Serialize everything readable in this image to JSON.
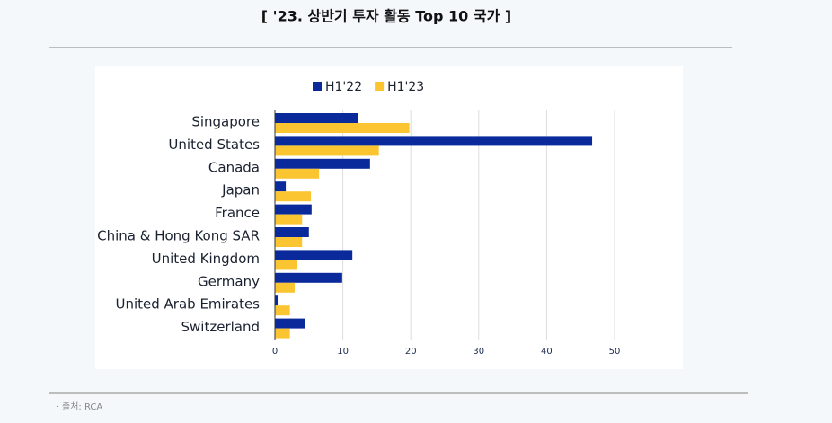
{
  "chart_data": {
    "type": "bar",
    "orientation": "horizontal",
    "title": "[ '23. 상반기 투자 활동 Top 10 국가 ]",
    "categories": [
      "Singapore",
      "United States",
      "Canada",
      "Japan",
      "France",
      "China & Hong Kong SAR",
      "United Kingdom",
      "Germany",
      "United Arab Emirates",
      "Switzerland"
    ],
    "series": [
      {
        "name": "H1'22",
        "color": "#0a2a9c",
        "values": [
          12.2,
          46.7,
          14.0,
          1.6,
          5.4,
          5.0,
          11.4,
          9.9,
          0.4,
          4.4
        ]
      },
      {
        "name": "H1'23",
        "color": "#fbc531",
        "values": [
          19.8,
          15.3,
          6.5,
          5.3,
          4.0,
          4.0,
          3.2,
          2.9,
          2.2,
          2.2
        ]
      }
    ],
    "xlim": [
      0,
      50
    ],
    "xticks": [
      0,
      10,
      20,
      30,
      40,
      50
    ],
    "grid": true,
    "source": "출처: RCA"
  }
}
